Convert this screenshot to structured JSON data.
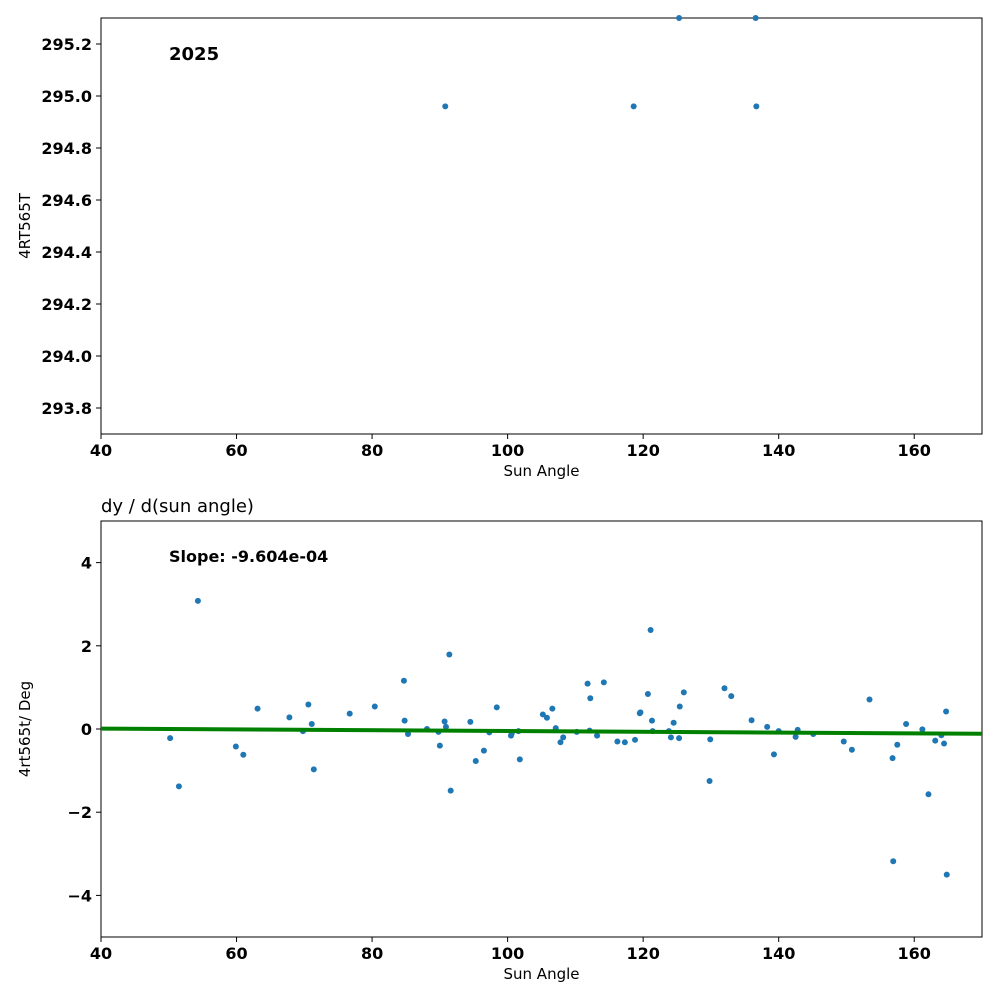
{
  "chart_data": [
    {
      "type": "scatter",
      "annotation": "2025",
      "xlabel": "Sun Angle",
      "ylabel": "4RT565T",
      "xlim": [
        40,
        170
      ],
      "ylim": [
        293.7,
        295.3
      ],
      "xticks": [
        "40",
        "60",
        "80",
        "100",
        "120",
        "140",
        "160"
      ],
      "yticks": [
        "293.8",
        "294.0",
        "294.2",
        "294.4",
        "294.6",
        "294.8",
        "295.0",
        "295.2"
      ],
      "grid": false,
      "point_color": "#1f77b4",
      "series": [
        {
          "x": [
            90.8,
            118.6,
            136.7,
            125.3,
            136.6
          ],
          "y": [
            294.96,
            294.96,
            294.96,
            295.3,
            295.3
          ]
        }
      ]
    },
    {
      "type": "scatter",
      "title": "dy / d(sun angle)",
      "annotation": "Slope: -9.604e-04",
      "xlabel": "Sun Angle",
      "ylabel": "4rt565t/ Deg",
      "xlim": [
        40,
        170
      ],
      "ylim": [
        -5,
        5
      ],
      "xticks": [
        "40",
        "60",
        "80",
        "100",
        "120",
        "140",
        "160"
      ],
      "yticks": [
        "−4",
        "−2",
        "0",
        "2",
        "4"
      ],
      "grid": false,
      "point_color": "#1f77b4",
      "fit_color": "#008000",
      "fit_line": {
        "x": [
          40,
          170
        ],
        "y": [
          0.01,
          -0.115
        ]
      },
      "series": [
        {
          "x": [
            50.2,
            51.5,
            54.3,
            59.9,
            61.0,
            63.1,
            67.8,
            69.8,
            70.6,
            71.1,
            71.4,
            76.7,
            80.4,
            84.7,
            84.8,
            85.3,
            88.1,
            89.8,
            90.0,
            90.7,
            90.9,
            91.4,
            91.6,
            94.5,
            95.3,
            96.5,
            97.3,
            98.4,
            100.5,
            100.6,
            101.6,
            101.8,
            105.2,
            105.8,
            106.6,
            107.1,
            107.8,
            108.2,
            110.2,
            111.8,
            112.1,
            112.2,
            113.2,
            114.2,
            116.2,
            117.3,
            118.8,
            119.5,
            119.6,
            120.7,
            121.1,
            121.3,
            121.4,
            123.8,
            124.1,
            124.5,
            125.3,
            125.4,
            126.0,
            129.8,
            129.9,
            132.0,
            133.0,
            136.0,
            138.3,
            139.3,
            140.0,
            142.5,
            142.8,
            145.1,
            149.6,
            150.8,
            153.4,
            156.8,
            156.9,
            157.5,
            158.8,
            161.2,
            162.1,
            163.1,
            164.0,
            164.4,
            164.7,
            164.8
          ],
          "y": [
            -0.22,
            -1.38,
            3.08,
            -0.42,
            -0.62,
            0.49,
            0.28,
            -0.05,
            0.59,
            0.12,
            -0.97,
            0.37,
            0.54,
            1.16,
            0.2,
            -0.12,
            0.0,
            -0.07,
            -0.4,
            0.18,
            0.05,
            1.79,
            -1.48,
            0.17,
            -0.77,
            -0.52,
            -0.08,
            0.52,
            -0.16,
            -0.11,
            -0.05,
            -0.73,
            0.35,
            0.27,
            0.49,
            0.02,
            -0.32,
            -0.2,
            -0.07,
            1.09,
            -0.04,
            0.74,
            -0.16,
            1.12,
            -0.3,
            -0.32,
            -0.26,
            0.38,
            0.4,
            0.84,
            2.38,
            0.2,
            -0.05,
            -0.05,
            -0.2,
            0.15,
            -0.22,
            0.54,
            0.88,
            -1.25,
            -0.25,
            0.98,
            0.79,
            0.21,
            0.05,
            -0.61,
            -0.05,
            -0.19,
            -0.02,
            -0.12,
            -0.3,
            -0.5,
            0.71,
            -0.7,
            -3.18,
            -0.38,
            0.12,
            -0.01,
            -1.57,
            -0.28,
            -0.15,
            -0.35,
            0.42,
            -3.5
          ]
        }
      ]
    }
  ]
}
